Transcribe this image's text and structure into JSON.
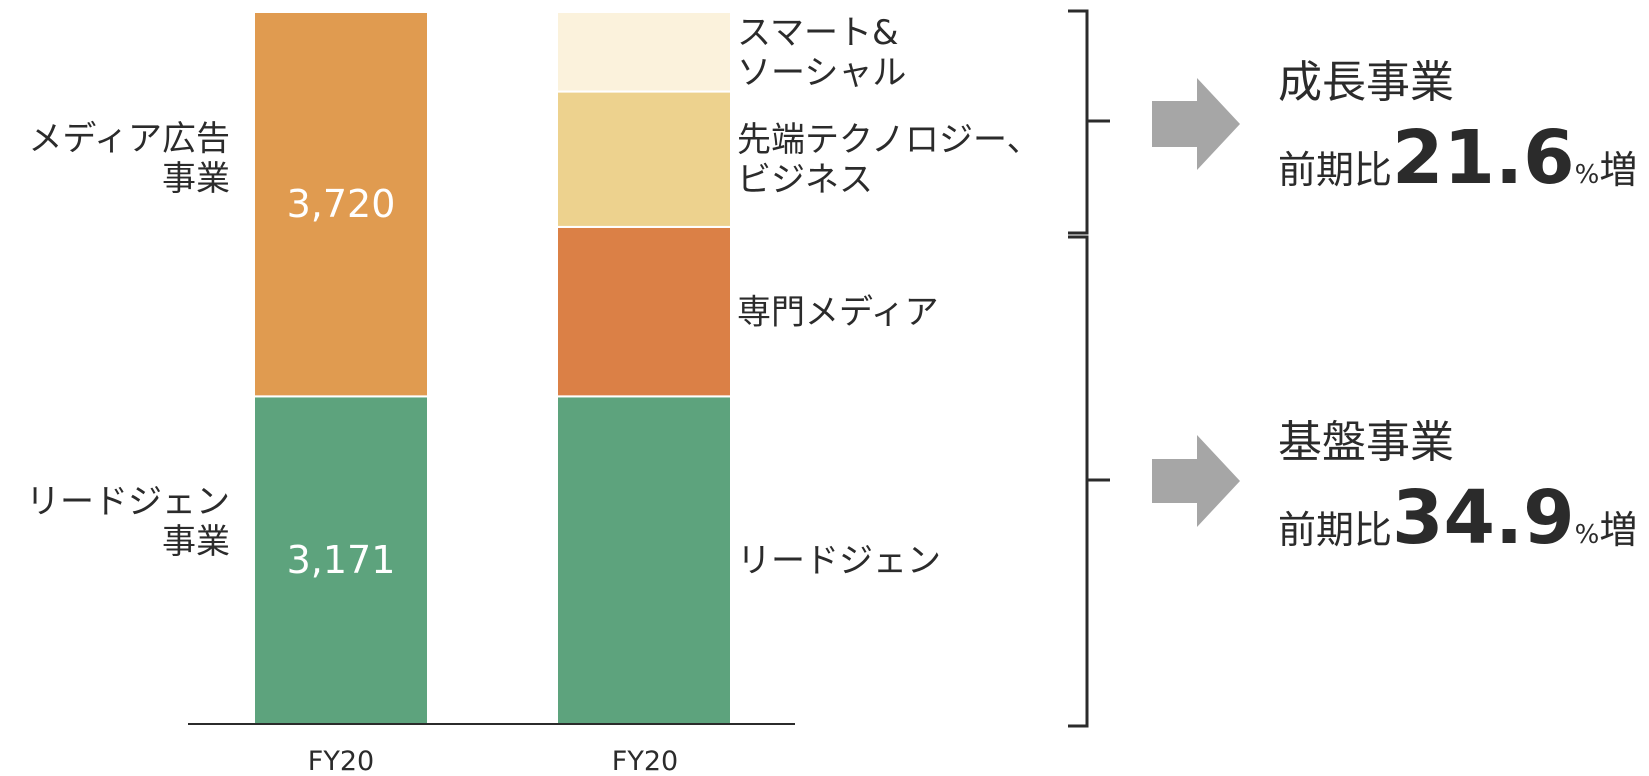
{
  "chart_data": {
    "type": "bar",
    "stacked": true,
    "categories": [
      "FY20",
      "FY20"
    ],
    "bars": [
      {
        "category": "FY20",
        "segments": [
          {
            "name": "リードジェン事業",
            "label_lines": [
              "リードジェン",
              "事業"
            ],
            "value": 3171,
            "value_label": "3,171",
            "color": "#5da37d"
          },
          {
            "name": "メディア広告事業",
            "label_lines": [
              "メディア広告",
              "事業"
            ],
            "value": 3720,
            "value_label": "3,720",
            "color": "#e09b50"
          }
        ]
      },
      {
        "category": "FY20",
        "segments": [
          {
            "name": "リードジェン",
            "label_lines": [
              "リードジェン"
            ],
            "value": 3171,
            "color": "#5da37d"
          },
          {
            "name": "専門メディア",
            "label_lines": [
              "専門メディア"
            ],
            "value": 1640,
            "color": "#db8046"
          },
          {
            "name": "先端テクノロジー、ビジネス",
            "label_lines": [
              "先端テクノロジー、",
              "ビジネス"
            ],
            "value": 1310,
            "color": "#edd28e"
          },
          {
            "name": "スマート&ソーシャル",
            "label_lines": [
              "スマート&",
              "ソーシャル"
            ],
            "value": 770,
            "color": "#fbf2dc"
          }
        ]
      }
    ],
    "ylim": [
      0,
      6891
    ],
    "grid": false,
    "legend": "none",
    "groups": [
      {
        "title": "成長事業",
        "prefix": "前期比",
        "value": "21.6",
        "unit": "%",
        "suffix": "増"
      },
      {
        "title": "基盤事業",
        "prefix": "前期比",
        "value": "34.9",
        "unit": "%",
        "suffix": "増"
      }
    ],
    "colors": {
      "text": "#2b2b2b",
      "axis": "#2b2b2b",
      "arrow": "#a6a6a6",
      "value_text": "#ffffff"
    }
  }
}
